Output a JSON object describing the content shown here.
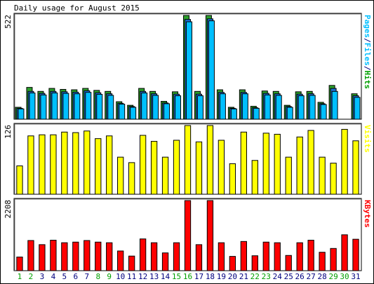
{
  "chart_data": {
    "type": "bar",
    "title": "Daily usage for August 2015",
    "days": [
      "1",
      "2",
      "3",
      "4",
      "5",
      "6",
      "7",
      "8",
      "9",
      "10",
      "11",
      "12",
      "13",
      "14",
      "15",
      "16",
      "17",
      "18",
      "19",
      "20",
      "21",
      "22",
      "23",
      "24",
      "25",
      "26",
      "27",
      "28",
      "29",
      "30",
      "31"
    ],
    "weekend_days": [
      "1",
      "2",
      "8",
      "9",
      "15",
      "16",
      "22",
      "23",
      "29",
      "30"
    ],
    "weekend_color": "#00a000",
    "weekday_color": "#000080",
    "panels": [
      {
        "id": "top",
        "axis_max_label": "522",
        "ymax": 522,
        "side_label": [
          {
            "text": "Pages",
            "color": "#00bfff"
          },
          {
            "text": "/",
            "color": "#000080"
          },
          {
            "text": "Files",
            "color": "#00bfff"
          },
          {
            "text": "/",
            "color": "#000080"
          },
          {
            "text": "Hits",
            "color": "#00a000"
          }
        ],
        "series": [
          {
            "name": "Hits",
            "color": "#2ca02c",
            "values": [
              60,
              160,
              140,
              155,
              150,
              148,
              155,
              145,
              140,
              88,
              70,
              155,
              140,
              90,
              138,
              522,
              140,
              522,
              148,
              60,
              148,
              65,
              142,
              140,
              70,
              138,
              140,
              85,
              170,
              0,
              128
            ]
          },
          {
            "name": "Files",
            "color": "#1f6fd0",
            "values": [
              55,
              140,
              130,
              140,
              138,
              136,
              143,
              133,
              128,
              80,
              64,
              140,
              128,
              82,
              126,
              502,
              126,
              505,
              135,
              55,
              135,
              58,
              130,
              128,
              64,
              126,
              128,
              78,
              155,
              0,
              118
            ]
          },
          {
            "name": "Pages",
            "color": "#00bfff",
            "values": [
              52,
              132,
              122,
              132,
              130,
              128,
              135,
              125,
              120,
              76,
              60,
              132,
              120,
              78,
              118,
              490,
              118,
              495,
              128,
              52,
              128,
              55,
              122,
              120,
              60,
              118,
              120,
              74,
              140,
              0,
              110
            ]
          }
        ]
      },
      {
        "id": "mid",
        "axis_max_label": "126",
        "ymax": 126,
        "side_label": [
          {
            "text": "Visits",
            "color": "#ffff00"
          }
        ],
        "series": [
          {
            "name": "Visits",
            "color": "#ffff00",
            "values": [
              52,
              107,
              109,
              109,
              114,
              113,
              116,
              102,
              107,
              68,
              58,
              108,
              97,
              68,
              99,
              126,
              96,
              126,
              99,
              56,
              114,
              62,
              112,
              110,
              68,
              105,
              117,
              68,
              57,
              119,
              98
            ]
          }
        ]
      },
      {
        "id": "bot",
        "axis_max_label": "2208",
        "ymax": 2208,
        "side_label": [
          {
            "text": "KBytes",
            "color": "#ff0000"
          }
        ],
        "series": [
          {
            "name": "KBytes",
            "color": "#ff0000",
            "values": [
              430,
              950,
              820,
              960,
              880,
              900,
              950,
              900,
              880,
              620,
              460,
              1000,
              880,
              560,
              880,
              2208,
              820,
              2208,
              880,
              450,
              920,
              470,
              900,
              880,
              480,
              880,
              960,
              580,
              700,
              1130,
              990
            ]
          }
        ]
      }
    ]
  }
}
